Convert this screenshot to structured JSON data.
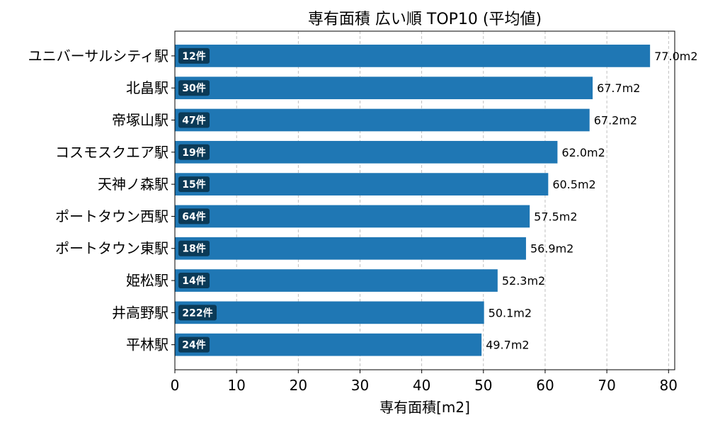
{
  "chart_data": {
    "type": "bar",
    "orientation": "horizontal",
    "title": "専有面積 広い順 TOP10 (平均値)",
    "xlabel": "専有面積[m2]",
    "ylabel": "",
    "xlim": [
      0,
      81
    ],
    "xticks": [
      0,
      10,
      20,
      30,
      40,
      50,
      60,
      70,
      80
    ],
    "grid": "x-dashed",
    "colors": {
      "bar": "#1f77b4",
      "badge": "#0b3a57"
    },
    "categories": [
      "ユニバーサルシティ駅",
      "北畠駅",
      "帝塚山駅",
      "コスモスクエア駅",
      "天神ノ森駅",
      "ポートタウン西駅",
      "ポートタウン東駅",
      "姫松駅",
      "井高野駅",
      "平林駅"
    ],
    "values": [
      77.0,
      67.7,
      67.2,
      62.0,
      60.5,
      57.5,
      56.9,
      52.3,
      50.1,
      49.7
    ],
    "value_labels": [
      "77.0m2",
      "67.7m2",
      "67.2m2",
      "62.0m2",
      "60.5m2",
      "57.5m2",
      "56.9m2",
      "52.3m2",
      "50.1m2",
      "49.7m2"
    ],
    "counts": [
      "12件",
      "30件",
      "47件",
      "19件",
      "15件",
      "64件",
      "18件",
      "14件",
      "222件",
      "24件"
    ]
  }
}
